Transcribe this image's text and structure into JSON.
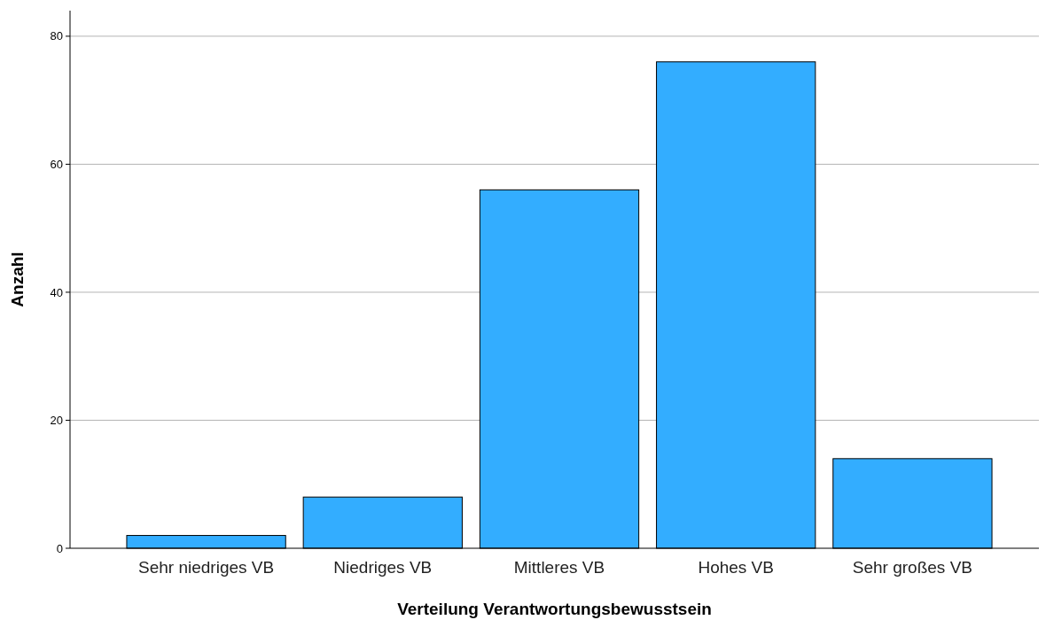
{
  "chart_data": {
    "type": "bar",
    "xlabel": "Verteilung Verantwortungsbewusstsein",
    "ylabel": "Anzahl",
    "categories": [
      "Sehr niedriges VB",
      "Niedriges VB",
      "Mittleres VB",
      "Hohes VB",
      "Sehr großes VB"
    ],
    "values": [
      2,
      8,
      56,
      76,
      14
    ],
    "color": "#33adff",
    "ylim": [
      0,
      84
    ],
    "yticks": [
      0,
      20,
      40,
      60,
      80
    ],
    "grid": "y"
  }
}
